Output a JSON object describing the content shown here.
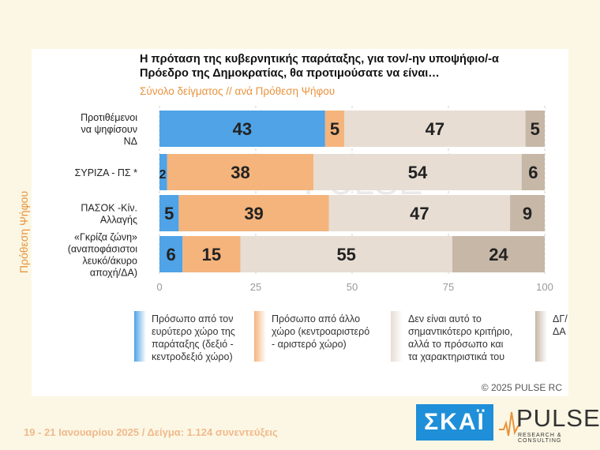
{
  "title_line1": "Η πρόταση της κυβερνητικής παράταξης, για τον/-ην υποψήφιο/-α",
  "title_line2": "Πρόεδρο της Δημοκρατίας, θα προτιμούσατε να είναι…",
  "subtitle": "Σύνολο δείγματος // ανά Πρόθεση Ψήφου",
  "group_axis_label": "Πρόθεση Ψήφου",
  "watermark": "PULSE",
  "watermark_sub": "RESEARCH & CONSULTING",
  "copyright": "©  2025  PULSE RC",
  "footer": "19 - 21 Ιανουαρίου 2025  /  Δείγμα:  1.124 συνεντεύξεις",
  "logo_skai": "ΣΚΑΪ",
  "logo_pulse": "PULSE",
  "logo_pulse_sub": "RESEARCH & CONSULTING",
  "colors": {
    "series1": "#4fa3e6",
    "series2": "#f4b47c",
    "series3": "#e7ddd3",
    "series4": "#c7b7a7",
    "accent": "#e8933d"
  },
  "chart_data": {
    "type": "bar",
    "orientation": "horizontal",
    "stacked": true,
    "categories": [
      [
        "Προτιθέμενοι",
        "να ψηφίσουν",
        "ΝΔ"
      ],
      [
        "ΣΥΡΙΖΑ - ΠΣ *"
      ],
      [
        "ΠΑΣΟΚ -Κίν.",
        "Αλλαγής"
      ],
      [
        "«Γκρίζα ζώνη»",
        "(αναποφάσιστοι",
        "λευκό/άκυρο",
        "αποχή/ΔΑ)"
      ]
    ],
    "series": [
      {
        "name": "Πρόσωπο από τον ευρύτερο χώρο της παράταξης (δεξιό - κεντροδεξιό χώρο)",
        "legend_lines": [
          "Πρόσωπο από τον",
          "ευρύτερο χώρο της",
          "παράταξης (δεξιό -",
          "κεντροδεξιό χώρο)"
        ],
        "values": [
          43,
          2,
          5,
          6
        ]
      },
      {
        "name": "Πρόσωπο από άλλο χώρο (κεντροαριστερό - αριστερό χώρο)",
        "legend_lines": [
          "Πρόσωπο από άλλο",
          "χώρο (κεντροαριστερό",
          "- αριστερό χώρο)"
        ],
        "values": [
          5,
          38,
          39,
          15
        ]
      },
      {
        "name": "Δεν είναι αυτό το σημαντικότερο κριτήριο, αλλά το πρόσωπο και τα χαρακτηριστικά του",
        "legend_lines": [
          "Δεν είναι αυτό το",
          "σημαντικότερο κριτήριο,",
          "αλλά το πρόσωπο και",
          "τα χαρακτηριστικά του"
        ],
        "values": [
          47,
          54,
          47,
          55
        ]
      },
      {
        "name": "ΔΓ/ΔΑ",
        "legend_lines": [
          "ΔΓ/",
          "ΔΑ"
        ],
        "values": [
          5,
          6,
          9,
          24
        ]
      }
    ],
    "xlim": [
      0,
      100
    ],
    "xticks": [
      "0",
      "25",
      "50",
      "75",
      "100"
    ],
    "grid": true
  }
}
